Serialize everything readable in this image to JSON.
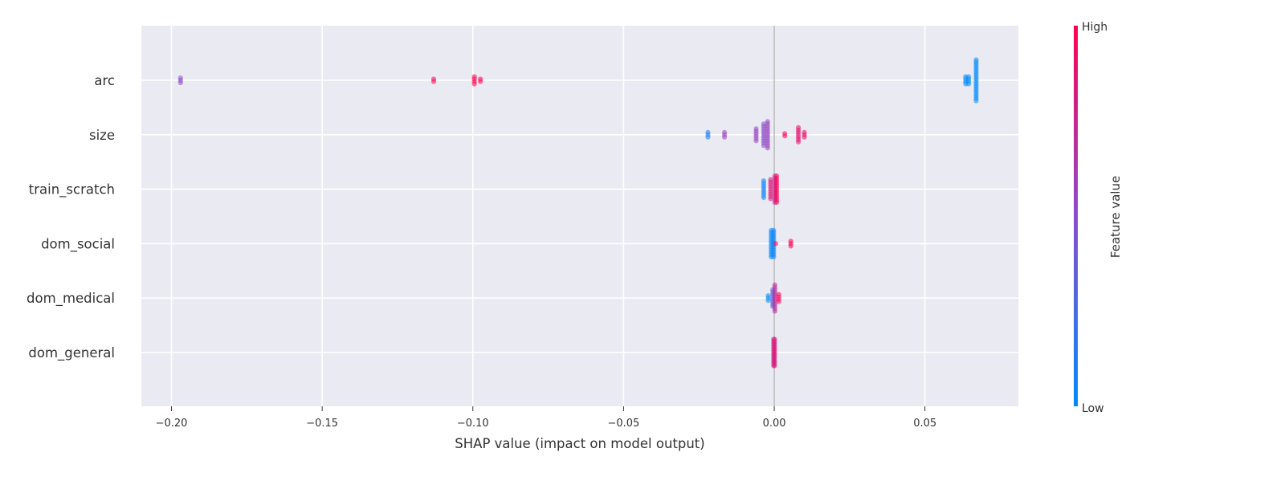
{
  "chart_data": {
    "type": "scatter",
    "subtype": "shap-beeswarm",
    "xlabel": "SHAP value (impact on model output)",
    "xlim": [
      -0.21,
      0.081
    ],
    "xticks": [
      -0.2,
      -0.15,
      -0.1,
      -0.05,
      0.0,
      0.05
    ],
    "xtick_labels": [
      "−0.20",
      "−0.15",
      "−0.10",
      "−0.05",
      "0.00",
      "0.05"
    ],
    "features": [
      "arc",
      "size",
      "train_scratch",
      "dom_social",
      "dom_medical",
      "dom_general"
    ],
    "colorbar": {
      "label": "Feature value",
      "high_label": "High",
      "low_label": "Low",
      "low_color": "#008bfb",
      "mid_color": "#8b4ccc",
      "high_color": "#ff0052"
    },
    "series": [
      {
        "feature": "arc",
        "groups": [
          {
            "x": -0.197,
            "value": 0.5,
            "n": 3
          },
          {
            "x": -0.113,
            "value": 1.0,
            "n": 2
          },
          {
            "x": -0.0995,
            "value": 1.0,
            "n": 4
          },
          {
            "x": -0.0975,
            "value": 1.0,
            "n": 2
          },
          {
            "x": 0.0635,
            "value": 0.0,
            "n": 4
          },
          {
            "x": 0.0645,
            "value": 0.0,
            "n": 4
          },
          {
            "x": 0.067,
            "value": 0.0,
            "n": 18
          }
        ]
      },
      {
        "feature": "size",
        "groups": [
          {
            "x": -0.022,
            "value": 0.1,
            "n": 3
          },
          {
            "x": -0.0165,
            "value": 0.55,
            "n": 3
          },
          {
            "x": -0.006,
            "value": 0.55,
            "n": 6
          },
          {
            "x": -0.0035,
            "value": 0.5,
            "n": 10
          },
          {
            "x": -0.0022,
            "value": 0.55,
            "n": 12
          },
          {
            "x": 0.0035,
            "value": 1.0,
            "n": 2
          },
          {
            "x": 0.008,
            "value": 0.9,
            "n": 7
          },
          {
            "x": 0.01,
            "value": 0.9,
            "n": 3
          }
        ]
      },
      {
        "feature": "train_scratch",
        "groups": [
          {
            "x": -0.0035,
            "value": 0.05,
            "n": 8
          },
          {
            "x": -0.0012,
            "value": 0.85,
            "n": 9
          },
          {
            "x": 0.0002,
            "value": 0.65,
            "n": 12
          },
          {
            "x": 0.0008,
            "value": 1.0,
            "n": 12
          }
        ]
      },
      {
        "feature": "dom_social",
        "groups": [
          {
            "x": -0.001,
            "value": 0.0,
            "n": 12
          },
          {
            "x": -0.0002,
            "value": 0.05,
            "n": 12
          },
          {
            "x": 0.0005,
            "value": 1.0,
            "n": 1
          },
          {
            "x": 0.0055,
            "value": 1.0,
            "n": 3
          }
        ]
      },
      {
        "feature": "dom_medical",
        "groups": [
          {
            "x": -0.002,
            "value": 0.0,
            "n": 3
          },
          {
            "x": -0.0005,
            "value": 0.3,
            "n": 8
          },
          {
            "x": 0.0002,
            "value": 0.7,
            "n": 12
          },
          {
            "x": 0.0015,
            "value": 1.0,
            "n": 4
          }
        ]
      },
      {
        "feature": "dom_general",
        "groups": [
          {
            "x": -0.0002,
            "value": 0.75,
            "n": 12
          },
          {
            "x": 0.0001,
            "value": 0.85,
            "n": 12
          }
        ]
      }
    ]
  }
}
